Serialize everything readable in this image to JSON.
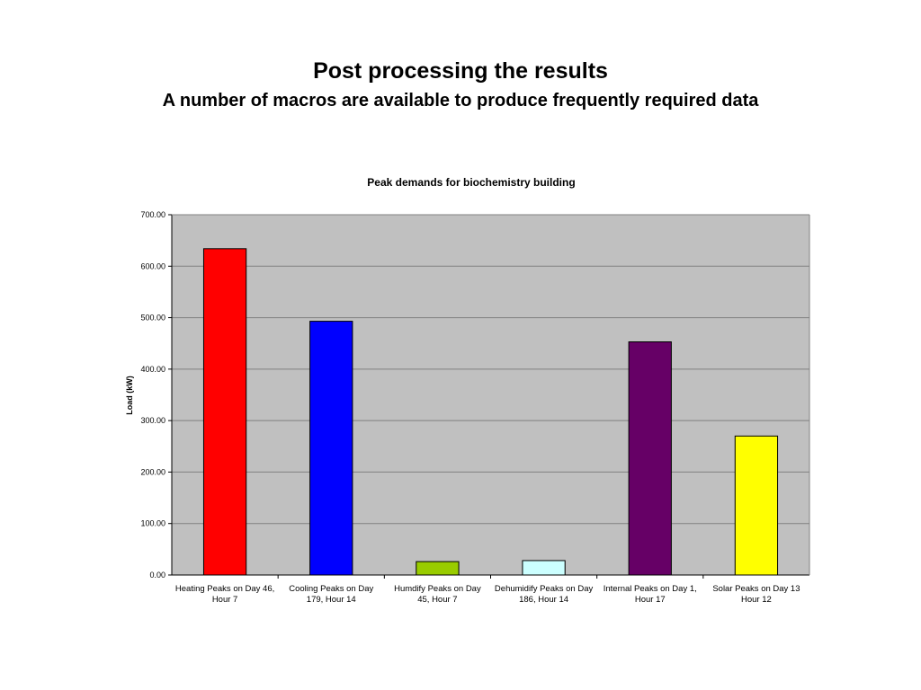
{
  "slide": {
    "title": "Post processing the results",
    "subtitle": "A number of macros are available to produce frequently required data"
  },
  "chart_data": {
    "type": "bar",
    "title": "Peak demands for biochemistry building",
    "xlabel": "",
    "ylabel": "Load (kW)",
    "ylim": [
      0,
      700
    ],
    "yticks": [
      "0.00",
      "100.00",
      "200.00",
      "300.00",
      "400.00",
      "500.00",
      "600.00",
      "700.00"
    ],
    "grid": true,
    "legend": "none",
    "plot_background": "#c0c0c0",
    "categories": [
      [
        "Heating Peaks on Day 46,",
        "Hour 7"
      ],
      [
        "Cooling Peaks on Day",
        "179, Hour 14"
      ],
      [
        "Humdify Peaks on Day",
        "45, Hour 7"
      ],
      [
        "Dehumidify Peaks on Day",
        "186, Hour 14"
      ],
      [
        "Internal Peaks on Day 1,",
        "Hour 17"
      ],
      [
        "Solar Peaks on Day 13",
        "Hour 12"
      ]
    ],
    "values": [
      634,
      493,
      26,
      28,
      453,
      270
    ],
    "colors": [
      "#ff0000",
      "#0000ff",
      "#99cc00",
      "#ccffff",
      "#660066",
      "#ffff00"
    ]
  }
}
